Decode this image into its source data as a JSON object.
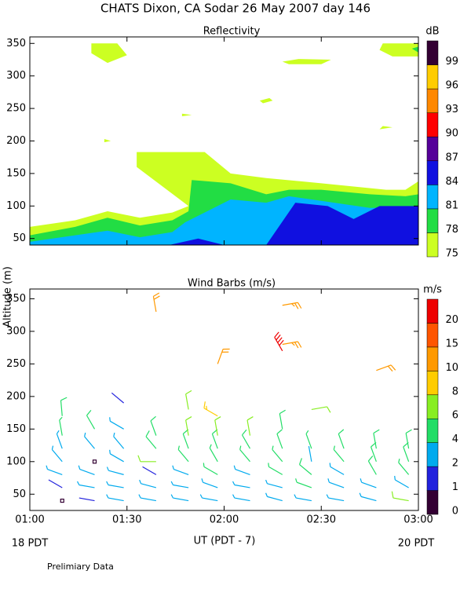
{
  "title": "CHATS Dixon, CA  Sodar  26 May 2007  day 146",
  "ylabel": "Altitude (m)",
  "xlabel": "UT  (PDT - 7)",
  "x_notes": [
    "18 PDT",
    "20 PDT"
  ],
  "footnote": "Prelimiary Data",
  "chart_data": [
    {
      "type": "contour",
      "title": "Reflectivity",
      "xlim": [
        60,
        180
      ],
      "ylim": [
        40,
        360
      ],
      "yticks": [
        50,
        100,
        150,
        200,
        250,
        300,
        350
      ],
      "colorbar": {
        "label": "dB",
        "levels": [
          75,
          78,
          81,
          84,
          87,
          90,
          93,
          96,
          99
        ],
        "colors": [
          "#ccff22",
          "#22dd44",
          "#00b4ff",
          "#1010e0",
          "#550099",
          "#ff0000",
          "#ff8800",
          "#ffcc00",
          "#330033"
        ]
      },
      "regions": [
        {
          "level": 75,
          "x": [
            60,
            60,
            74,
            84,
            94,
            104,
            109,
            93,
            93,
            114,
            122,
            133,
            150,
            170,
            176,
            180,
            180
          ],
          "y": [
            40,
            68,
            78,
            92,
            82,
            90,
            100,
            160,
            183,
            183,
            150,
            143,
            135,
            125,
            125,
            138,
            40
          ]
        },
        {
          "level": 75,
          "x": [
            79,
            87,
            90,
            84,
            79
          ],
          "y": [
            350,
            350,
            332,
            320,
            335
          ]
        },
        {
          "level": 75,
          "x": [
            169,
            180,
            180,
            172,
            168
          ],
          "y": [
            350,
            350,
            330,
            330,
            340
          ]
        },
        {
          "level": 75,
          "x": [
            138,
            143,
            153,
            150,
            140
          ],
          "y": [
            322,
            326,
            325,
            318,
            318
          ]
        },
        {
          "level": 75,
          "x": [
            132,
            135,
            134,
            131
          ],
          "y": [
            258,
            262,
            266,
            262
          ]
        },
        {
          "level": 75,
          "x": [
            107,
            110,
            107
          ],
          "y": [
            238,
            240,
            242
          ]
        },
        {
          "level": 75,
          "x": [
            83,
            85,
            83
          ],
          "y": [
            198,
            200,
            203
          ]
        },
        {
          "level": 75,
          "x": [
            168,
            172,
            169
          ],
          "y": [
            218,
            221,
            223
          ]
        },
        {
          "level": 78,
          "x": [
            60,
            60,
            74,
            84,
            94,
            104,
            109,
            110,
            122,
            133,
            140,
            150,
            165,
            176,
            180,
            180
          ],
          "y": [
            40,
            55,
            68,
            82,
            70,
            78,
            92,
            140,
            135,
            118,
            125,
            125,
            118,
            115,
            118,
            40
          ]
        },
        {
          "level": 78,
          "x": [
            178,
            180,
            180
          ],
          "y": [
            342,
            345,
            336
          ]
        },
        {
          "level": 81,
          "x": [
            60,
            60,
            84,
            94,
            104,
            108,
            122,
            133,
            140,
            150,
            165,
            176,
            180,
            180
          ],
          "y": [
            40,
            45,
            62,
            52,
            60,
            75,
            110,
            105,
            115,
            108,
            97,
            98,
            100,
            40
          ]
        },
        {
          "level": 84,
          "x": [
            103,
            112,
            120
          ],
          "y": [
            40,
            50,
            40
          ]
        },
        {
          "level": 84,
          "x": [
            133,
            142,
            152,
            160,
            168,
            180,
            180
          ],
          "y": [
            40,
            105,
            100,
            80,
            100,
            100,
            40
          ]
        }
      ]
    },
    {
      "type": "barbs",
      "title": "Wind Barbs (m/s)",
      "xlim": [
        60,
        180
      ],
      "ylim": [
        25,
        365
      ],
      "yticks": [
        50,
        100,
        150,
        200,
        250,
        300,
        350
      ],
      "xticks": [
        {
          "value": 60,
          "label": "01:00"
        },
        {
          "value": 90,
          "label": "01:30"
        },
        {
          "value": 120,
          "label": "02:00"
        },
        {
          "value": 150,
          "label": "02:30"
        },
        {
          "value": 180,
          "label": "03:00"
        }
      ],
      "colorbar": {
        "label": "m/s",
        "levels": [
          0,
          1,
          2,
          4,
          6,
          8,
          10,
          15,
          20
        ],
        "colors": [
          "#330033",
          "#2222dd",
          "#00aaee",
          "#22dd66",
          "#88ee22",
          "#ffcc00",
          "#ff9900",
          "#ff5500",
          "#ee0000"
        ]
      },
      "columns": [
        {
          "x": 70,
          "y": [
            40,
            60,
            80,
            100,
            120,
            140,
            170
          ],
          "speed": [
            0.5,
            1.5,
            2.5,
            3,
            3.5,
            4.5,
            5
          ],
          "direction": [
            0,
            300,
            290,
            320,
            340,
            350,
            355
          ]
        },
        {
          "x": 80,
          "y": [
            40,
            60,
            80,
            100,
            120,
            150
          ],
          "speed": [
            1.2,
            3,
            3,
            0.5,
            3.5,
            5
          ],
          "direction": [
            280,
            280,
            290,
            0,
            320,
            330
          ]
        },
        {
          "x": 89,
          "y": [
            40,
            60,
            80,
            100,
            120,
            150,
            190
          ],
          "speed": [
            3,
            3,
            3,
            3.5,
            3.5,
            3.5,
            1.5
          ],
          "direction": [
            280,
            280,
            285,
            300,
            320,
            300,
            310
          ]
        },
        {
          "x": 99,
          "y": [
            40,
            60,
            80,
            100,
            120,
            140,
            330
          ],
          "speed": [
            3,
            2.5,
            1.5,
            6,
            5,
            5,
            12
          ],
          "direction": [
            280,
            285,
            300,
            270,
            320,
            340,
            350
          ]
        },
        {
          "x": 109,
          "y": [
            40,
            60,
            80,
            100,
            120,
            140,
            180
          ],
          "speed": [
            3,
            3,
            3,
            4,
            5,
            6,
            6
          ],
          "direction": [
            280,
            280,
            290,
            320,
            340,
            350,
            350
          ]
        },
        {
          "x": 118,
          "y": [
            40,
            60,
            80,
            100,
            120,
            140,
            170,
            250
          ],
          "speed": [
            3,
            3,
            4,
            4,
            5,
            6,
            9,
            11
          ],
          "direction": [
            280,
            290,
            300,
            330,
            340,
            350,
            300,
            20
          ]
        },
        {
          "x": 128,
          "y": [
            40,
            60,
            80,
            100,
            120,
            140
          ],
          "speed": [
            3,
            3,
            3,
            4,
            5,
            6
          ],
          "direction": [
            280,
            280,
            290,
            320,
            330,
            350
          ]
        },
        {
          "x": 138,
          "y": [
            40,
            60,
            80,
            100,
            120,
            150,
            270,
            280,
            340
          ],
          "speed": [
            3,
            3,
            4,
            4,
            5,
            5,
            20,
            14,
            13
          ],
          "direction": [
            285,
            285,
            300,
            320,
            340,
            350,
            330,
            80,
            80
          ]
        },
        {
          "x": 147,
          "y": [
            40,
            60,
            80,
            100,
            120,
            180
          ],
          "speed": [
            3,
            4,
            5,
            2,
            4,
            7
          ],
          "direction": [
            280,
            290,
            310,
            350,
            340,
            80
          ]
        },
        {
          "x": 157,
          "y": [
            40,
            60,
            80,
            100,
            120
          ],
          "speed": [
            3,
            3,
            3,
            4,
            5
          ],
          "direction": [
            280,
            290,
            300,
            320,
            340
          ]
        },
        {
          "x": 167,
          "y": [
            40,
            60,
            80,
            100,
            120,
            240
          ],
          "speed": [
            3,
            3,
            5,
            5,
            5,
            11
          ],
          "direction": [
            285,
            290,
            330,
            340,
            350,
            70
          ]
        },
        {
          "x": 177,
          "y": [
            40,
            60,
            80,
            100,
            120
          ],
          "speed": [
            6,
            3,
            4,
            5,
            5
          ],
          "direction": [
            280,
            300,
            320,
            340,
            350
          ]
        }
      ]
    }
  ]
}
